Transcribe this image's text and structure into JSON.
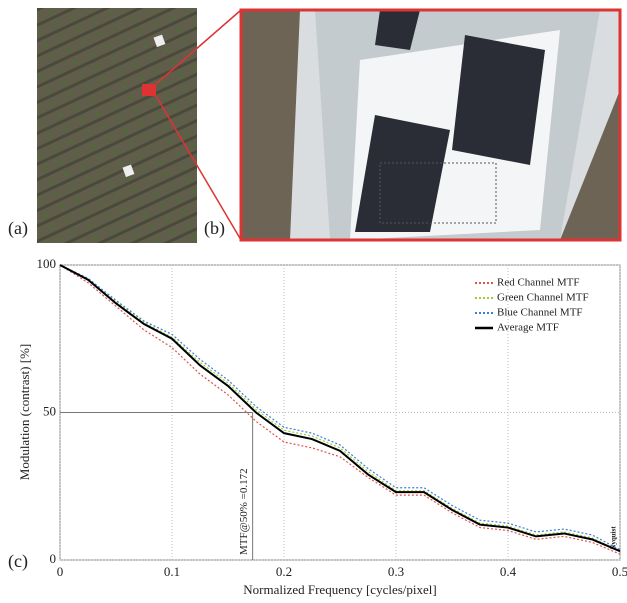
{
  "figure": {
    "labels": [
      "(a)",
      "(b)",
      "(c)"
    ]
  },
  "chart_data": {
    "type": "line",
    "xlabel": "Normalized Frequency [cycles/pixel]",
    "ylabel": "Modulation (contrast) [%]",
    "x": [
      0,
      0.025,
      0.05,
      0.075,
      0.1,
      0.125,
      0.15,
      0.175,
      0.2,
      0.225,
      0.25,
      0.275,
      0.3,
      0.325,
      0.35,
      0.375,
      0.4,
      0.425,
      0.45,
      0.475,
      0.5
    ],
    "series": [
      {
        "name": "Red Channel MTF",
        "color": "#e0524f",
        "style": "dotted",
        "values": [
          100,
          94,
          86,
          78,
          72,
          63,
          56,
          47,
          40,
          38,
          35,
          28,
          22,
          22,
          16,
          11,
          10,
          7,
          8,
          6,
          2
        ]
      },
      {
        "name": "Green Channel MTF",
        "color": "#9acd32",
        "style": "dotted",
        "values": [
          100,
          95,
          87.5,
          80.5,
          75.5,
          67,
          60,
          51,
          44,
          42,
          38,
          30,
          23.5,
          23.5,
          17.5,
          12.5,
          11.5,
          8.5,
          9.5,
          7.5,
          3
        ]
      },
      {
        "name": "Blue Channel MTF",
        "color": "#3b7dd8",
        "style": "dotted",
        "values": [
          100,
          95.5,
          88,
          81,
          76.5,
          68,
          61,
          52,
          45,
          43,
          39,
          31,
          24.5,
          24.5,
          18.5,
          13.5,
          12.5,
          9.5,
          10.5,
          8.5,
          3.5
        ]
      },
      {
        "name": "Average MTF",
        "color": "#000000",
        "style": "solid",
        "values": [
          100,
          95,
          87,
          80,
          75,
          66,
          59,
          50,
          43,
          41,
          37,
          29,
          23,
          23,
          17,
          12,
          11,
          8,
          9,
          7,
          3
        ]
      }
    ],
    "xlim": [
      0,
      0.5
    ],
    "ylim": [
      0,
      100
    ],
    "xticks": [
      0,
      0.1,
      0.2,
      0.3,
      0.4,
      0.5
    ],
    "yticks": [
      0,
      50,
      100
    ],
    "grid": true,
    "legend": "upper right",
    "mtf50": {
      "x": 0.172,
      "y": 50,
      "label": "MTF@50% =0.172"
    },
    "annotation": "Nyquist"
  }
}
